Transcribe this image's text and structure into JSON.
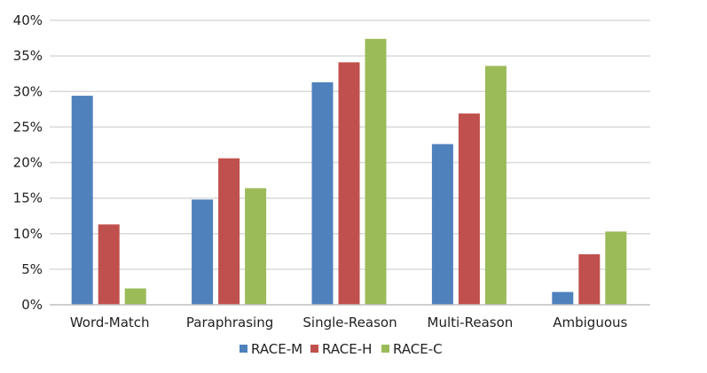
{
  "chart_data": {
    "type": "bar",
    "categories": [
      "Word-Match",
      "Paraphrasing",
      "Single-Reason",
      "Multi-Reason",
      "Ambiguous"
    ],
    "series": [
      {
        "name": "RACE-M",
        "color": "#4f81bd",
        "values": [
          29.4,
          14.8,
          31.3,
          22.6,
          1.8
        ]
      },
      {
        "name": "RACE-H",
        "color": "#c0504d",
        "values": [
          11.3,
          20.6,
          34.1,
          26.9,
          7.1
        ]
      },
      {
        "name": "RACE-C",
        "color": "#9bbb59",
        "values": [
          2.3,
          16.4,
          37.4,
          33.6,
          10.3
        ]
      }
    ],
    "ylim": [
      0,
      40
    ],
    "y_ticks": [
      0,
      5,
      10,
      15,
      20,
      25,
      30,
      35,
      40
    ],
    "y_tick_labels": [
      "0%",
      "5%",
      "10%",
      "15%",
      "20%",
      "25%",
      "30%",
      "35%",
      "40%"
    ],
    "grid": true,
    "legend_position": "bottom",
    "title": "",
    "xlabel": "",
    "ylabel": ""
  }
}
